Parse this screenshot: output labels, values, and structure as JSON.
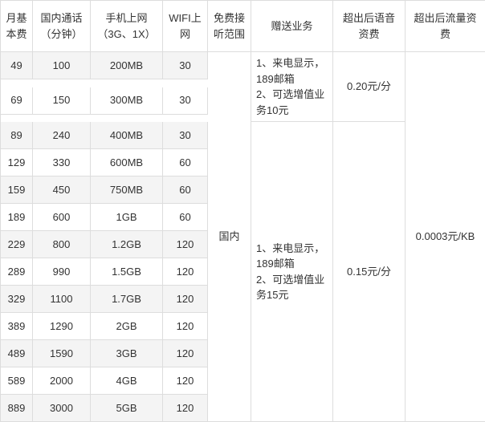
{
  "columns": {
    "c0": "月基本费",
    "c1": "国内通话（分钟）",
    "c2": "手机上网（3G、1X）",
    "c3": "WIFI上网",
    "c4": "免费接听范围",
    "c5": "赠送业务",
    "c6": "超出后语音资费",
    "c7": "超出后流量资费"
  },
  "widths": [
    "40px",
    "72px",
    "90px",
    "56px",
    "54px",
    "102px",
    "90px",
    "100px"
  ],
  "rows": [
    {
      "fee": "49",
      "min": "100",
      "data": "200MB",
      "wifi": "30"
    },
    {
      "fee": "69",
      "min": "150",
      "data": "300MB",
      "wifi": "30"
    },
    {
      "fee": "89",
      "min": "240",
      "data": "400MB",
      "wifi": "30"
    },
    {
      "fee": "129",
      "min": "330",
      "data": "600MB",
      "wifi": "60"
    },
    {
      "fee": "159",
      "min": "450",
      "data": "750MB",
      "wifi": "60"
    },
    {
      "fee": "189",
      "min": "600",
      "data": "1GB",
      "wifi": "60"
    },
    {
      "fee": "229",
      "min": "800",
      "data": "1.2GB",
      "wifi": "120"
    },
    {
      "fee": "289",
      "min": "990",
      "data": "1.5GB",
      "wifi": "120"
    },
    {
      "fee": "329",
      "min": "1100",
      "data": "1.7GB",
      "wifi": "120"
    },
    {
      "fee": "389",
      "min": "1290",
      "data": "2GB",
      "wifi": "120"
    },
    {
      "fee": "489",
      "min": "1590",
      "data": "3GB",
      "wifi": "120"
    },
    {
      "fee": "589",
      "min": "2000",
      "data": "4GB",
      "wifi": "120"
    },
    {
      "fee": "889",
      "min": "3000",
      "data": "5GB",
      "wifi": "120"
    }
  ],
  "free_range": "国内",
  "gift1": "1、来电显示，189邮箱\n2、可选增值业务10元",
  "gift2": "1、来电显示，189邮箱\n2、可选增值业务15元",
  "voice1": "0.20元/分",
  "voice2": "0.15元/分",
  "traffic": "0.0003元/KB",
  "colors": {
    "border": "#dddddd",
    "row_alt": "#f4f4f4",
    "text": "#333333"
  }
}
